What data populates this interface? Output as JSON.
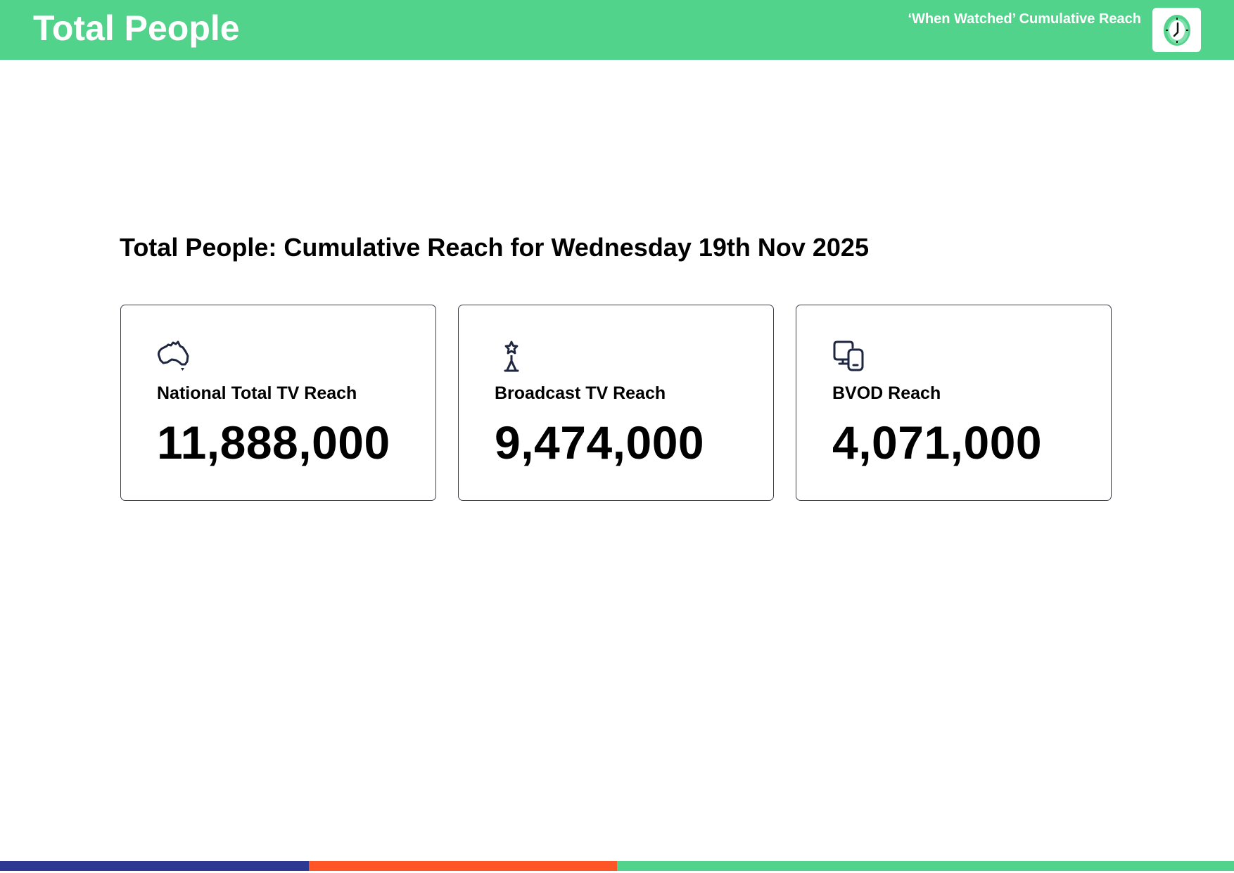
{
  "header": {
    "title": "Total People",
    "subtitle": "‘When Watched’ Cumulative Reach",
    "logo_icon": "clock-icon",
    "background_color": "#52d38b"
  },
  "main": {
    "heading": "Total People: Cumulative Reach for Wednesday 19th Nov 2025",
    "cards": [
      {
        "icon": "australia-map-icon",
        "label": "National Total TV Reach",
        "value": "11,888,000"
      },
      {
        "icon": "broadcast-tower-icon",
        "label": "Broadcast TV Reach",
        "value": "9,474,000"
      },
      {
        "icon": "devices-icon",
        "label": "BVOD Reach",
        "value": "4,071,000"
      }
    ]
  },
  "footer": {
    "segments": [
      {
        "color": "#2c3892",
        "width": "25%"
      },
      {
        "color": "#ff5527",
        "width": "25%"
      },
      {
        "color": "#52d38b",
        "width": "50%"
      }
    ]
  }
}
